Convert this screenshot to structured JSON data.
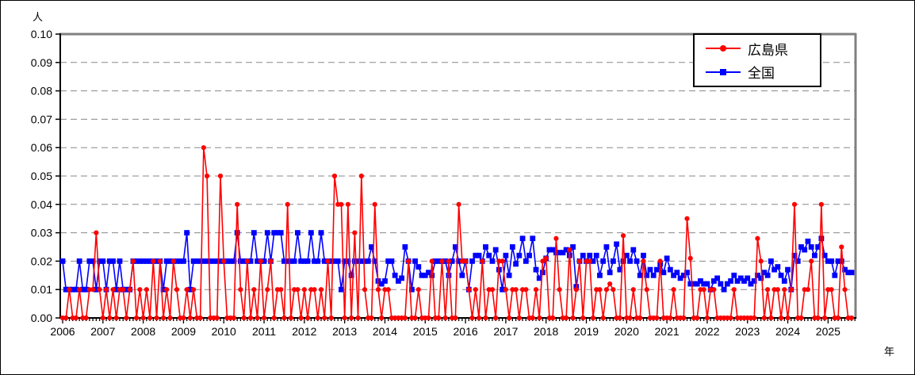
{
  "chart_data": {
    "type": "line",
    "title": "",
    "y_unit_label": "人",
    "x_unit_label": "年",
    "ylim": [
      0,
      0.1
    ],
    "y_tick_step": 0.01,
    "y_tick_labels": [
      "0.00",
      "0.01",
      "0.02",
      "0.03",
      "0.04",
      "0.05",
      "0.06",
      "0.07",
      "0.08",
      "0.09",
      "0.10"
    ],
    "x_year_labels": [
      "2006",
      "2007",
      "2008",
      "2009",
      "2010",
      "2011",
      "2012",
      "2013",
      "2014",
      "2015",
      "2016",
      "2017",
      "2018",
      "2019",
      "2020",
      "2021",
      "2022",
      "2023",
      "2024",
      "2025"
    ],
    "x_start_year": 2006,
    "points_per_year": 12,
    "grid": "horizontal-dashed",
    "legend_position": "top-right",
    "axis_color": "#000000",
    "frame_color": "#808080",
    "gridline_color": "#888888",
    "series": [
      {
        "name": "広島県",
        "color": "#ff0000",
        "marker": "circle",
        "values": [
          0,
          0,
          0.01,
          0,
          0,
          0.01,
          0,
          0,
          0.01,
          0.01,
          0.03,
          0.01,
          0,
          0.01,
          0,
          0.01,
          0,
          0.01,
          0.01,
          0,
          0.01,
          0.02,
          0,
          0.01,
          0,
          0.01,
          0,
          0.02,
          0,
          0.02,
          0,
          0.01,
          0,
          0.02,
          0.01,
          0,
          0,
          0.01,
          0,
          0.01,
          0,
          0,
          0.06,
          0.05,
          0,
          0,
          0,
          0.05,
          0.02,
          0,
          0,
          0,
          0.04,
          0.01,
          0,
          0.02,
          0,
          0.01,
          0,
          0.02,
          0,
          0.01,
          0.02,
          0,
          0.01,
          0.01,
          0,
          0.04,
          0,
          0.01,
          0.01,
          0,
          0.01,
          0,
          0.01,
          0.01,
          0,
          0.01,
          0,
          0.02,
          0,
          0.05,
          0.04,
          0.04,
          0,
          0.04,
          0,
          0.03,
          0,
          0.05,
          0.01,
          0,
          0,
          0.04,
          0.01,
          0,
          0.01,
          0.01,
          0,
          0,
          0,
          0,
          0,
          0.02,
          0,
          0,
          0.01,
          0,
          0,
          0,
          0.02,
          0,
          0,
          0.02,
          0,
          0.02,
          0,
          0,
          0.04,
          0.02,
          0.02,
          0.01,
          0,
          0.01,
          0,
          0.02,
          0,
          0.01,
          0.01,
          0,
          0.02,
          0.02,
          0.01,
          0,
          0.01,
          0.01,
          0,
          0.01,
          0.01,
          0,
          0,
          0.01,
          0,
          0.02,
          0.021,
          0,
          0,
          0.028,
          0.01,
          0,
          0,
          0.024,
          0,
          0.01,
          0.02,
          0,
          0.02,
          0.02,
          0,
          0.01,
          0.01,
          0,
          0.01,
          0.012,
          0.01,
          0,
          0,
          0.029,
          0,
          0,
          0.01,
          0,
          0,
          0.02,
          0.01,
          0,
          0,
          0,
          0.02,
          0,
          0,
          0,
          0.01,
          0,
          0,
          0,
          0.035,
          0.021,
          0,
          0,
          0.01,
          0.01,
          0,
          0.01,
          0.01,
          0,
          0,
          0,
          0,
          0,
          0.01,
          0,
          0,
          0,
          0,
          0,
          0,
          0.028,
          0.02,
          0,
          0.01,
          0,
          0.01,
          0.01,
          0,
          0.01,
          0,
          0.01,
          0.04,
          0,
          0,
          0.01,
          0.01,
          0.02,
          0,
          0,
          0.04,
          0,
          0.01,
          0.01,
          0,
          0,
          0.025,
          0.01,
          0,
          0
        ]
      },
      {
        "name": "全国",
        "color": "#0000ff",
        "marker": "square",
        "values": [
          0.02,
          0.01,
          0.01,
          0.01,
          0.01,
          0.02,
          0.01,
          0.01,
          0.02,
          0.02,
          0.01,
          0.02,
          0.02,
          0.01,
          0.02,
          0.02,
          0.01,
          0.02,
          0.01,
          0.01,
          0.01,
          0.02,
          0.02,
          0.02,
          0.02,
          0.02,
          0.02,
          0.02,
          0.02,
          0.02,
          0.01,
          0.02,
          0.02,
          0.02,
          0.02,
          0.02,
          0.02,
          0.03,
          0.01,
          0.02,
          0.02,
          0.02,
          0.02,
          0.02,
          0.02,
          0.02,
          0.02,
          0.02,
          0.02,
          0.02,
          0.02,
          0.02,
          0.03,
          0.02,
          0.02,
          0.02,
          0.02,
          0.03,
          0.02,
          0.02,
          0.02,
          0.03,
          0.02,
          0.03,
          0.03,
          0.03,
          0.02,
          0.02,
          0.02,
          0.02,
          0.03,
          0.02,
          0.02,
          0.02,
          0.03,
          0.02,
          0.02,
          0.03,
          0.02,
          0.02,
          0.02,
          0.02,
          0.02,
          0.01,
          0.02,
          0.02,
          0.015,
          0.02,
          0.02,
          0.02,
          0.02,
          0.02,
          0.025,
          0.02,
          0.013,
          0.012,
          0.013,
          0.02,
          0.02,
          0.015,
          0.013,
          0.014,
          0.025,
          0.02,
          0.01,
          0.02,
          0.018,
          0.015,
          0.015,
          0.016,
          0.015,
          0.02,
          0.02,
          0.02,
          0.02,
          0.015,
          0.02,
          0.025,
          0.02,
          0.015,
          0.02,
          0.01,
          0.02,
          0.022,
          0.022,
          0.02,
          0.025,
          0.022,
          0.02,
          0.024,
          0.017,
          0.01,
          0.022,
          0.015,
          0.025,
          0.019,
          0.022,
          0.028,
          0.02,
          0.022,
          0.028,
          0.017,
          0.014,
          0.016,
          0.021,
          0.024,
          0.024,
          0.023,
          0.023,
          0.023,
          0.024,
          0.022,
          0.025,
          0.011,
          0.02,
          0.022,
          0.02,
          0.022,
          0.02,
          0.022,
          0.015,
          0.02,
          0.025,
          0.016,
          0.02,
          0.026,
          0.017,
          0.02,
          0.022,
          0.02,
          0.024,
          0.02,
          0.015,
          0.022,
          0.015,
          0.017,
          0.015,
          0.017,
          0.019,
          0.016,
          0.021,
          0.017,
          0.015,
          0.016,
          0.014,
          0.015,
          0.016,
          0.012,
          0.012,
          0.012,
          0.013,
          0.012,
          0.012,
          0.01,
          0.013,
          0.014,
          0.012,
          0.01,
          0.012,
          0.013,
          0.015,
          0.013,
          0.014,
          0.013,
          0.014,
          0.012,
          0.013,
          0.015,
          0.014,
          0.016,
          0.015,
          0.02,
          0.017,
          0.018,
          0.015,
          0.013,
          0.017,
          0.01,
          0.022,
          0.02,
          0.025,
          0.024,
          0.027,
          0.025,
          0.022,
          0.025,
          0.028,
          0.022,
          0.02,
          0.02,
          0.015,
          0.02,
          0.02,
          0.017,
          0.016,
          0.016
        ]
      }
    ]
  }
}
